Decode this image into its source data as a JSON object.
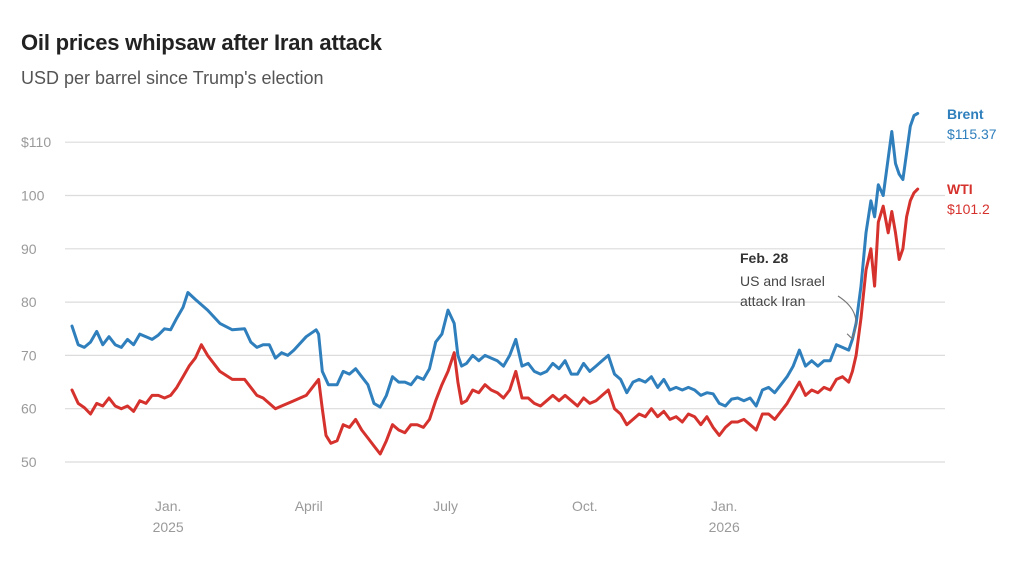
{
  "chart_data": {
    "type": "line",
    "title": "Oil prices whipsaw after Iran attack",
    "subtitle": "USD per barrel since Trump's election",
    "ylim": [
      45,
      116
    ],
    "y_ticks": [
      {
        "value": 110,
        "label": "$110"
      },
      {
        "value": 100,
        "label": "100"
      },
      {
        "value": 90,
        "label": "90"
      },
      {
        "value": 80,
        "label": "80"
      },
      {
        "value": 70,
        "label": "70"
      },
      {
        "value": 60,
        "label": "60"
      },
      {
        "value": 50,
        "label": "50"
      }
    ],
    "x_range": [
      0,
      70
    ],
    "x_ticks": [
      {
        "t": 7.8,
        "line1": "Jan.",
        "line2": "2025"
      },
      {
        "t": 19.2,
        "line1": "April",
        "line2": ""
      },
      {
        "t": 30.3,
        "line1": "July",
        "line2": ""
      },
      {
        "t": 41.6,
        "line1": "Oct.",
        "line2": ""
      },
      {
        "t": 52.9,
        "line1": "Jan.",
        "line2": "2026"
      }
    ],
    "series": [
      {
        "name": "Brent",
        "color": "#2f7fbd",
        "value_label": "$115.37",
        "points": [
          [
            0,
            75.5
          ],
          [
            0.5,
            72
          ],
          [
            1,
            71.5
          ],
          [
            1.5,
            72.5
          ],
          [
            2,
            74.5
          ],
          [
            2.5,
            72
          ],
          [
            3,
            73.5
          ],
          [
            3.5,
            72
          ],
          [
            4,
            71.5
          ],
          [
            4.5,
            73
          ],
          [
            5,
            72
          ],
          [
            5.5,
            74
          ],
          [
            6,
            73.5
          ],
          [
            6.5,
            73
          ],
          [
            7,
            73.8
          ],
          [
            7.5,
            75
          ],
          [
            8,
            74.8
          ],
          [
            8.5,
            77
          ],
          [
            9,
            79
          ],
          [
            9.4,
            81.8
          ],
          [
            10,
            80.5
          ],
          [
            11,
            78.5
          ],
          [
            12,
            76
          ],
          [
            13,
            74.8
          ],
          [
            14,
            75
          ],
          [
            14.5,
            72.5
          ],
          [
            15,
            71.5
          ],
          [
            15.5,
            72
          ],
          [
            16,
            72
          ],
          [
            16.5,
            69.5
          ],
          [
            17,
            70.5
          ],
          [
            17.5,
            70
          ],
          [
            18,
            71
          ],
          [
            19,
            73.5
          ],
          [
            19.8,
            74.8
          ],
          [
            20,
            74
          ],
          [
            20.3,
            67
          ],
          [
            20.8,
            64.5
          ],
          [
            21.5,
            64.5
          ],
          [
            22,
            67
          ],
          [
            22.5,
            66.5
          ],
          [
            23,
            67.5
          ],
          [
            23.5,
            66
          ],
          [
            24,
            64.5
          ],
          [
            24.5,
            61
          ],
          [
            25,
            60.3
          ],
          [
            25.5,
            62.5
          ],
          [
            26,
            66
          ],
          [
            26.5,
            65
          ],
          [
            27,
            65
          ],
          [
            27.5,
            64.5
          ],
          [
            28,
            66
          ],
          [
            28.5,
            65.5
          ],
          [
            29,
            67.5
          ],
          [
            29.5,
            72.5
          ],
          [
            30,
            74
          ],
          [
            30.5,
            78.5
          ],
          [
            31,
            76
          ],
          [
            31.3,
            70
          ],
          [
            31.6,
            68
          ],
          [
            32,
            68.5
          ],
          [
            32.5,
            70
          ],
          [
            33,
            69
          ],
          [
            33.5,
            70
          ],
          [
            34,
            69.5
          ],
          [
            34.5,
            69
          ],
          [
            35,
            68
          ],
          [
            35.5,
            70
          ],
          [
            36,
            73
          ],
          [
            36.5,
            68
          ],
          [
            37,
            68.5
          ],
          [
            37.5,
            67
          ],
          [
            38,
            66.5
          ],
          [
            38.5,
            67
          ],
          [
            39,
            68.5
          ],
          [
            39.5,
            67.5
          ],
          [
            40,
            69
          ],
          [
            40.5,
            66.5
          ],
          [
            41,
            66.5
          ],
          [
            41.5,
            68.5
          ],
          [
            42,
            67
          ],
          [
            42.5,
            68
          ],
          [
            43,
            69
          ],
          [
            43.5,
            70
          ],
          [
            44,
            66.5
          ],
          [
            44.5,
            65.5
          ],
          [
            45,
            63
          ],
          [
            45.5,
            65
          ],
          [
            46,
            65.5
          ],
          [
            46.5,
            65
          ],
          [
            47,
            66
          ],
          [
            47.5,
            64
          ],
          [
            48,
            65.5
          ],
          [
            48.5,
            63.5
          ],
          [
            49,
            64
          ],
          [
            49.5,
            63.5
          ],
          [
            50,
            64
          ],
          [
            50.5,
            63.5
          ],
          [
            51,
            62.5
          ],
          [
            51.5,
            63
          ],
          [
            52,
            62.8
          ],
          [
            52.5,
            61
          ],
          [
            53,
            60.5
          ],
          [
            53.5,
            61.8
          ],
          [
            54,
            62
          ],
          [
            54.5,
            61.5
          ],
          [
            55,
            62
          ],
          [
            55.5,
            60.5
          ],
          [
            56,
            63.5
          ],
          [
            56.5,
            64
          ],
          [
            57,
            63
          ],
          [
            57.5,
            64.5
          ],
          [
            58,
            66
          ],
          [
            58.5,
            68
          ],
          [
            59,
            71
          ],
          [
            59.5,
            68
          ],
          [
            60,
            69
          ],
          [
            60.5,
            68
          ],
          [
            61,
            69
          ],
          [
            61.5,
            69
          ],
          [
            62,
            72
          ],
          [
            62.5,
            71.5
          ],
          [
            63,
            71
          ],
          [
            63.3,
            73
          ],
          [
            63.6,
            76
          ],
          [
            64,
            83
          ],
          [
            64.4,
            93
          ],
          [
            64.8,
            99
          ],
          [
            65.1,
            96
          ],
          [
            65.4,
            102
          ],
          [
            65.8,
            100
          ],
          [
            66.2,
            107
          ],
          [
            66.5,
            112
          ],
          [
            66.8,
            106
          ],
          [
            67.1,
            104
          ],
          [
            67.4,
            103
          ],
          [
            67.7,
            108
          ],
          [
            68,
            113
          ],
          [
            68.3,
            115
          ],
          [
            68.6,
            115.4
          ]
        ]
      },
      {
        "name": "WTI",
        "color": "#d6322d",
        "value_label": "$101.2",
        "points": [
          [
            0,
            63.5
          ],
          [
            0.5,
            61
          ],
          [
            1,
            60.2
          ],
          [
            1.5,
            59
          ],
          [
            2,
            61
          ],
          [
            2.5,
            60.5
          ],
          [
            3,
            62
          ],
          [
            3.5,
            60.5
          ],
          [
            4,
            60
          ],
          [
            4.5,
            60.5
          ],
          [
            5,
            59.5
          ],
          [
            5.5,
            61.5
          ],
          [
            6,
            61
          ],
          [
            6.5,
            62.5
          ],
          [
            7,
            62.5
          ],
          [
            7.5,
            62
          ],
          [
            8,
            62.5
          ],
          [
            8.5,
            64
          ],
          [
            9,
            66
          ],
          [
            9.5,
            68
          ],
          [
            10,
            69.5
          ],
          [
            10.5,
            72
          ],
          [
            11,
            70
          ],
          [
            12,
            67
          ],
          [
            13,
            65.5
          ],
          [
            14,
            65.5
          ],
          [
            14.5,
            64
          ],
          [
            15,
            62.5
          ],
          [
            15.5,
            62
          ],
          [
            16,
            61
          ],
          [
            16.5,
            60
          ],
          [
            17,
            60.5
          ],
          [
            18,
            61.5
          ],
          [
            18.5,
            62
          ],
          [
            19,
            62.5
          ],
          [
            19.5,
            64
          ],
          [
            20,
            65.5
          ],
          [
            20.3,
            60
          ],
          [
            20.6,
            55
          ],
          [
            21,
            53.5
          ],
          [
            21.5,
            54
          ],
          [
            22,
            57
          ],
          [
            22.5,
            56.5
          ],
          [
            23,
            58
          ],
          [
            23.5,
            56
          ],
          [
            24,
            54.5
          ],
          [
            24.5,
            53
          ],
          [
            25,
            51.5
          ],
          [
            25.5,
            54
          ],
          [
            26,
            57
          ],
          [
            26.5,
            56
          ],
          [
            27,
            55.5
          ],
          [
            27.5,
            57
          ],
          [
            28,
            57
          ],
          [
            28.5,
            56.5
          ],
          [
            29,
            58
          ],
          [
            29.5,
            61.5
          ],
          [
            30,
            64.5
          ],
          [
            30.5,
            67
          ],
          [
            31,
            70.5
          ],
          [
            31.3,
            65
          ],
          [
            31.6,
            61
          ],
          [
            32,
            61.5
          ],
          [
            32.5,
            63.5
          ],
          [
            33,
            63
          ],
          [
            33.5,
            64.5
          ],
          [
            34,
            63.5
          ],
          [
            34.5,
            63
          ],
          [
            35,
            62
          ],
          [
            35.5,
            63.5
          ],
          [
            36,
            67
          ],
          [
            36.5,
            62
          ],
          [
            37,
            62
          ],
          [
            37.5,
            61
          ],
          [
            38,
            60.5
          ],
          [
            38.5,
            61.5
          ],
          [
            39,
            62.5
          ],
          [
            39.5,
            61.5
          ],
          [
            40,
            62.5
          ],
          [
            40.5,
            61.5
          ],
          [
            41,
            60.5
          ],
          [
            41.5,
            62
          ],
          [
            42,
            61
          ],
          [
            42.5,
            61.5
          ],
          [
            43,
            62.5
          ],
          [
            43.5,
            63.5
          ],
          [
            44,
            60
          ],
          [
            44.5,
            59
          ],
          [
            45,
            57
          ],
          [
            45.5,
            58
          ],
          [
            46,
            59
          ],
          [
            46.5,
            58.5
          ],
          [
            47,
            60
          ],
          [
            47.5,
            58.5
          ],
          [
            48,
            59.5
          ],
          [
            48.5,
            58
          ],
          [
            49,
            58.5
          ],
          [
            49.5,
            57.5
          ],
          [
            50,
            59
          ],
          [
            50.5,
            58.5
          ],
          [
            51,
            57
          ],
          [
            51.5,
            58.5
          ],
          [
            52,
            56.5
          ],
          [
            52.5,
            55
          ],
          [
            53,
            56.5
          ],
          [
            53.5,
            57.5
          ],
          [
            54,
            57.5
          ],
          [
            54.5,
            58
          ],
          [
            55,
            57
          ],
          [
            55.5,
            56
          ],
          [
            56,
            59
          ],
          [
            56.5,
            59
          ],
          [
            57,
            58
          ],
          [
            57.5,
            59.5
          ],
          [
            58,
            61
          ],
          [
            58.5,
            63
          ],
          [
            59,
            65
          ],
          [
            59.5,
            62.5
          ],
          [
            60,
            63.5
          ],
          [
            60.5,
            63
          ],
          [
            61,
            64
          ],
          [
            61.5,
            63.5
          ],
          [
            62,
            65.5
          ],
          [
            62.5,
            66
          ],
          [
            63,
            65
          ],
          [
            63.3,
            67
          ],
          [
            63.6,
            70
          ],
          [
            64,
            77
          ],
          [
            64.4,
            86
          ],
          [
            64.8,
            90
          ],
          [
            65.1,
            83
          ],
          [
            65.4,
            95
          ],
          [
            65.8,
            98
          ],
          [
            66.2,
            93
          ],
          [
            66.5,
            97
          ],
          [
            66.8,
            93
          ],
          [
            67.1,
            88
          ],
          [
            67.4,
            90
          ],
          [
            67.7,
            96
          ],
          [
            68,
            99
          ],
          [
            68.3,
            100.5
          ],
          [
            68.6,
            101.2
          ]
        ]
      }
    ],
    "annotation": {
      "t": 63.6,
      "value": 72,
      "date": "Feb. 28",
      "lines": [
        "US and Israel",
        "attack Iran"
      ]
    }
  }
}
